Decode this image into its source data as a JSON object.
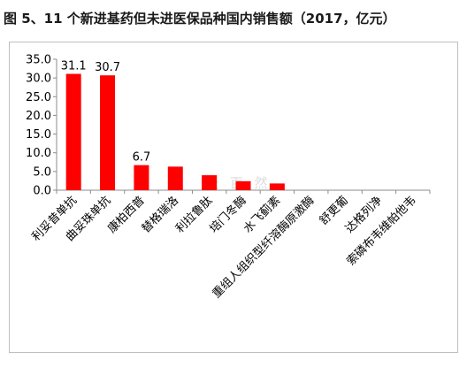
{
  "title": "图 5、11 个新进基药但未进医保品种国内销售额（2017，亿元）",
  "watermark": "张 百 然",
  "colors": {
    "bar": "#ff0000",
    "axis": "#8c8c8c",
    "text": "#000000"
  },
  "chart_data": {
    "type": "bar",
    "categories": [
      "利妥昔单抗",
      "曲妥珠单抗",
      "康柏西普",
      "替格瑞洛",
      "利拉鲁肽",
      "培门冬酶",
      "水飞蓟素",
      "重组人组织型纤溶酶原激酶衍生物",
      "舒更葡糖钠",
      "达格列净",
      "索磷布韦维帕他韦"
    ],
    "tick_labels": [
      "利妥昔单抗",
      "曲妥珠单抗",
      "康柏西普",
      "替格瑞洛",
      "利拉鲁肽",
      "培门冬酶",
      "水飞蓟素",
      "重组人组织型纤溶酶原激酶",
      "舒更葡",
      "达格列净",
      "索磷布韦维帕他韦"
    ],
    "values": [
      31.1,
      30.7,
      6.7,
      6.3,
      4.0,
      2.4,
      1.8,
      0,
      0,
      0,
      0
    ],
    "data_labels": [
      "31.1",
      "30.7",
      "6.7",
      "",
      "",
      "",
      "",
      "",
      "",
      "",
      ""
    ],
    "ylim": [
      0,
      35
    ],
    "yticks": [
      "0.0",
      "5.0",
      "10.0",
      "15.0",
      "20.0",
      "25.0",
      "30.0",
      "35.0"
    ],
    "xlabel": "",
    "ylabel": "",
    "grid": false,
    "legend": "none"
  }
}
